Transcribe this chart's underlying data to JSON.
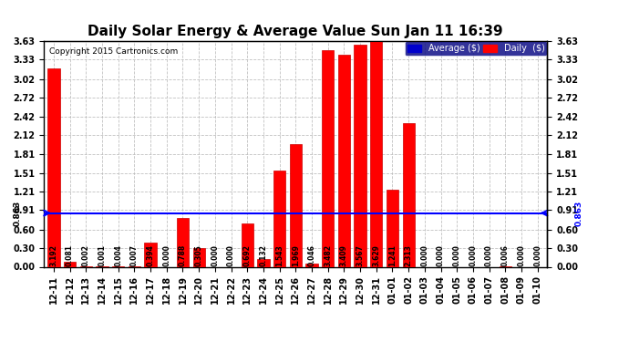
{
  "title": "Daily Solar Energy & Average Value Sun Jan 11 16:39",
  "copyright": "Copyright 2015 Cartronics.com",
  "categories": [
    "12-11",
    "12-12",
    "12-13",
    "12-14",
    "12-15",
    "12-16",
    "12-17",
    "12-18",
    "12-19",
    "12-20",
    "12-21",
    "12-22",
    "12-23",
    "12-24",
    "12-25",
    "12-26",
    "12-27",
    "12-28",
    "12-29",
    "12-30",
    "12-31",
    "01-01",
    "01-02",
    "01-03",
    "01-04",
    "01-05",
    "01-06",
    "01-07",
    "01-08",
    "01-09",
    "01-10"
  ],
  "values": [
    3.192,
    0.081,
    0.002,
    0.001,
    0.004,
    0.007,
    0.394,
    0.0,
    0.788,
    0.305,
    0.0,
    0.0,
    0.692,
    0.132,
    1.543,
    1.969,
    0.046,
    3.482,
    3.409,
    3.567,
    3.629,
    1.241,
    2.313,
    0.0,
    0.0,
    0.0,
    0.0,
    0.0,
    0.006,
    0.0,
    0.0
  ],
  "average_line": 0.863,
  "yticks": [
    0.0,
    0.3,
    0.6,
    0.91,
    1.21,
    1.51,
    1.81,
    2.12,
    2.42,
    2.72,
    3.02,
    3.33,
    3.63
  ],
  "bar_color": "#ff0000",
  "bar_edge_color": "#cc0000",
  "average_line_color": "#0000ff",
  "background_color": "#ffffff",
  "plot_bg_color": "#ffffff",
  "grid_color": "#bbbbbb",
  "title_fontsize": 11,
  "tick_fontsize": 7,
  "label_fontsize": 5.5,
  "legend_avg_color": "#0000cc",
  "legend_daily_color": "#ff0000",
  "avg_label_color": "#000000",
  "ylim": [
    0.0,
    3.63
  ]
}
